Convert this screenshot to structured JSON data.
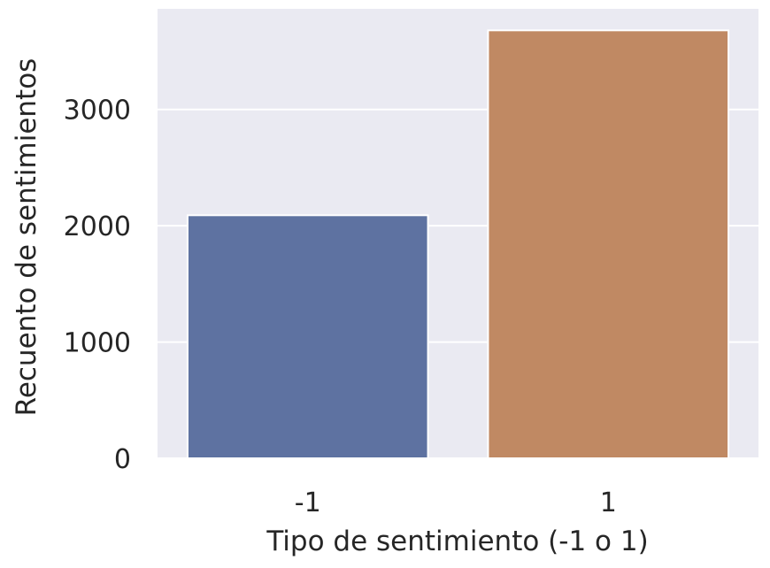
{
  "chart_data": {
    "type": "bar",
    "categories": [
      "-1",
      "1"
    ],
    "values": [
      2090,
      3680
    ],
    "colors": [
      "#5e72a1",
      "#c08963"
    ],
    "xlabel": "Tipo de sentimiento (-1 o 1)",
    "ylabel": "Recuento de sentimientos",
    "ylim": [
      0,
      3865
    ],
    "yticks": [
      0,
      1000,
      2000,
      3000
    ],
    "ytick_labels": [
      "0",
      "1000",
      "2000",
      "3000"
    ],
    "grid": true,
    "background": "#eaeaf2",
    "legend": "none"
  }
}
